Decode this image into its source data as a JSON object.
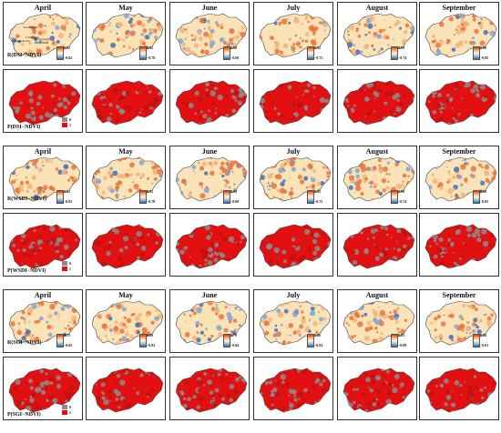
{
  "months": [
    "April",
    "May",
    "June",
    "July",
    "August",
    "September"
  ],
  "annotations": [
    "Kazakhstan",
    "Uzbekistan",
    "Kyrgyzstan",
    "Turkmenistan",
    "Tajikistan"
  ],
  "groups": [
    {
      "r_label": "R(DSI−NDVI)",
      "p_label": "P(DSI−NDVI)",
      "r_max": [
        "0.82",
        "0.92",
        "0.88",
        "0.92",
        "0.89",
        "0.90"
      ],
      "r_min": [
        "−0.82",
        "−0.78",
        "−0.69",
        "−0.75",
        "−0.74",
        "−0.85"
      ],
      "p_legend": [
        "0",
        "1"
      ]
    },
    {
      "r_label": "R(WSDI−NDVI)",
      "p_label": "P(WSDI−NDVI)",
      "r_max": [
        "0.82",
        "0.92",
        "0.88",
        "0.92",
        "0.89",
        "0.90"
      ],
      "r_min": [
        "−0.82",
        "−0.78",
        "−0.69",
        "−0.75",
        "−0.74",
        "−0.85"
      ],
      "p_legend": [
        "0",
        "1"
      ]
    },
    {
      "r_label": "R(SGI−NDVI)",
      "p_label": "P(SGI−NDVI)",
      "r_max": [
        "0.72",
        "0.80",
        "0.79",
        "0.86",
        "0.83",
        "0.86"
      ],
      "r_min": [
        "−0.82",
        "−0.82",
        "−0.84",
        "−0.92",
        "−0.89",
        "−0.81"
      ],
      "p_legend": [
        "0",
        "1"
      ]
    }
  ],
  "colors": {
    "red": "#e21010",
    "gray": "#8c8c8c",
    "warm": "#f3b27a",
    "cool": "#7fa6d6"
  }
}
